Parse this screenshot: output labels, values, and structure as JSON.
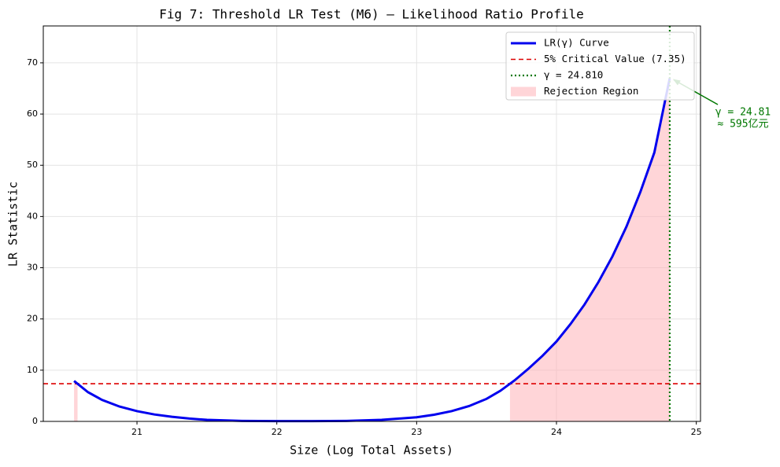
{
  "chart_data": {
    "type": "line",
    "title": "Fig 7: Threshold LR Test (M6) — Likelihood Ratio Profile",
    "xlabel": "Size (Log Total Assets)",
    "ylabel": "LR Statistic",
    "x": [
      20.55,
      20.65,
      20.75,
      20.875,
      21.0,
      21.125,
      21.25,
      21.375,
      21.5,
      21.75,
      22.0,
      22.25,
      22.5,
      22.75,
      23.0,
      23.125,
      23.25,
      23.375,
      23.5,
      23.6,
      23.7,
      23.8,
      23.9,
      24.0,
      24.1,
      24.2,
      24.3,
      24.4,
      24.5,
      24.6,
      24.7,
      24.81
    ],
    "series": [
      {
        "name": "LR(γ) Curve",
        "color": "#0000ee",
        "values": [
          7.9,
          5.7,
          4.2,
          2.9,
          2.0,
          1.35,
          0.9,
          0.55,
          0.3,
          0.1,
          0.05,
          0.05,
          0.1,
          0.3,
          0.8,
          1.3,
          2.0,
          3.0,
          4.4,
          6.0,
          8.0,
          10.3,
          12.8,
          15.6,
          19.0,
          22.8,
          27.2,
          32.2,
          38.0,
          44.8,
          52.5,
          67.0
        ]
      }
    ],
    "critical_value": 7.35,
    "critical_label": "5% Critical Value (7.35)",
    "critical_color": "#dd0000",
    "threshold": 24.81,
    "threshold_label": "γ = 24.810",
    "threshold_color": "#007700",
    "region_label": "Rejection Region",
    "region_color": "#ffb3b8",
    "annotation": [
      "γ = 24.81",
      "≈ 595亿元"
    ],
    "xlim": [
      20.33,
      25.03
    ],
    "ylim": [
      0,
      77.2
    ],
    "xticks": [
      21,
      22,
      23,
      24,
      25
    ],
    "yticks": [
      0,
      10,
      20,
      30,
      40,
      50,
      60,
      70
    ],
    "grid": true
  }
}
